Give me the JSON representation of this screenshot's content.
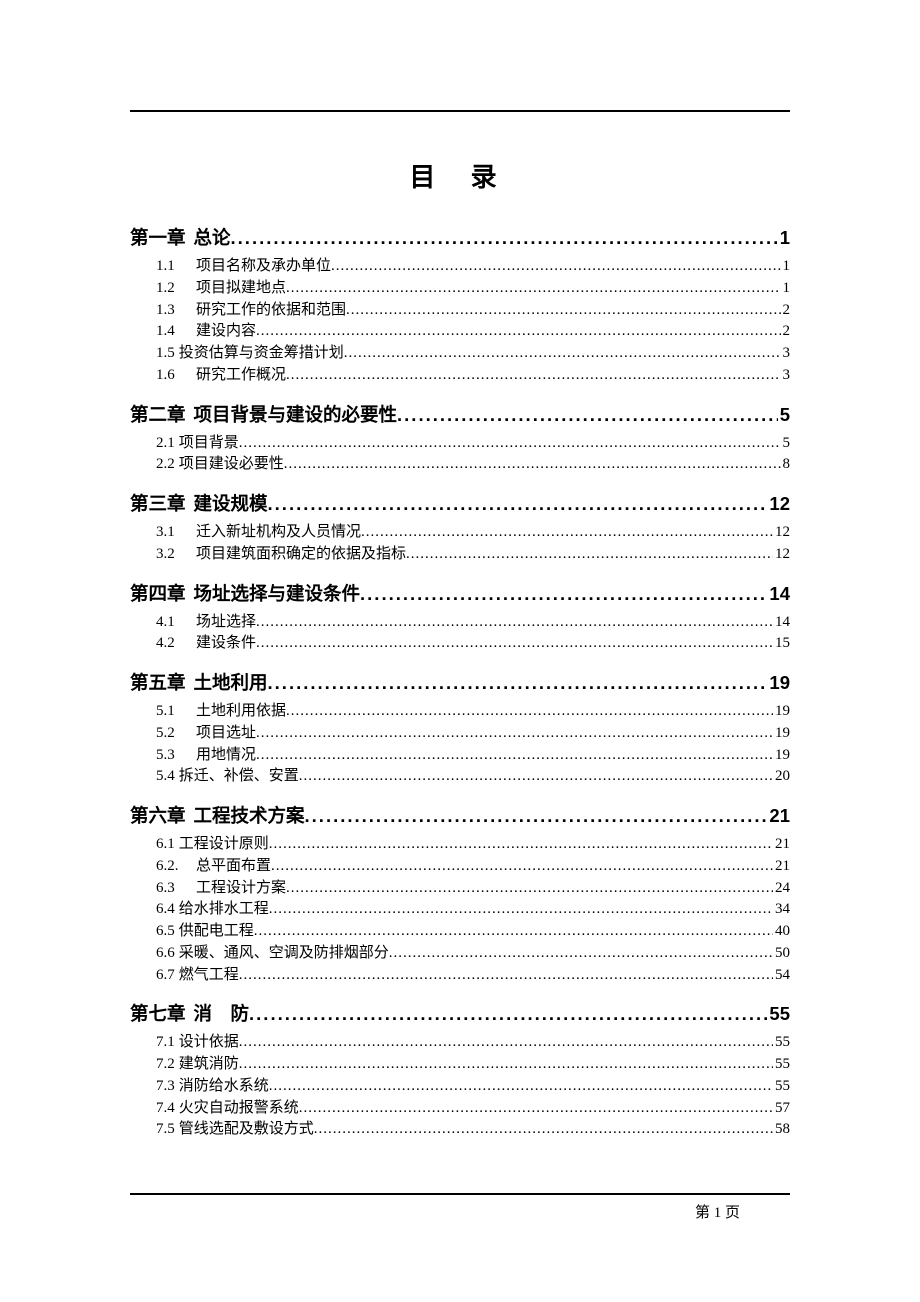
{
  "title": "目 录",
  "footer_page": "第 1 页",
  "toc": [
    {
      "type": "chapter",
      "num": "第一章",
      "label": "总论",
      "page": "1"
    },
    {
      "type": "sub",
      "num": "1.1",
      "label": "项目名称及承办单位",
      "page": "1"
    },
    {
      "type": "sub",
      "num": "1.2",
      "label": "项目拟建地点",
      "page": "1"
    },
    {
      "type": "sub",
      "num": "1.3",
      "label": "研究工作的依据和范围",
      "page": "2"
    },
    {
      "type": "sub",
      "num": "1.4",
      "label": "建设内容",
      "page": "2"
    },
    {
      "type": "sub",
      "num": "1.5",
      "label": "投资估算与资金筹措计划",
      "page": "3",
      "tight": true
    },
    {
      "type": "sub",
      "num": "1.6",
      "label": "研究工作概况",
      "page": "3"
    },
    {
      "type": "chapter",
      "num": "第二章",
      "label": "项目背景与建设的必要性",
      "page": "5"
    },
    {
      "type": "sub",
      "num": "2.1",
      "label": "项目背景",
      "page": "5",
      "tight": true
    },
    {
      "type": "sub",
      "num": "2.2",
      "label": "项目建设必要性",
      "page": "8",
      "tight": true
    },
    {
      "type": "chapter",
      "num": "第三章",
      "label": "建设规模",
      "page": "12"
    },
    {
      "type": "sub",
      "num": "3.1",
      "label": "迁入新址机构及人员情况",
      "page": "12"
    },
    {
      "type": "sub",
      "num": "3.2",
      "label": "项目建筑面积确定的依据及指标",
      "page": "12"
    },
    {
      "type": "chapter",
      "num": "第四章",
      "label": "场址选择与建设条件",
      "page": "14"
    },
    {
      "type": "sub",
      "num": "4.1",
      "label": "场址选择",
      "page": "14"
    },
    {
      "type": "sub",
      "num": "4.2",
      "label": "建设条件",
      "page": "15"
    },
    {
      "type": "chapter",
      "num": "第五章",
      "label": "土地利用",
      "page": "19"
    },
    {
      "type": "sub",
      "num": "5.1",
      "label": "土地利用依据",
      "page": "19"
    },
    {
      "type": "sub",
      "num": "5.2",
      "label": "项目选址",
      "page": "19"
    },
    {
      "type": "sub",
      "num": "5.3",
      "label": "用地情况",
      "page": "19"
    },
    {
      "type": "sub",
      "num": "5.4",
      "label": "拆迁、补偿、安置",
      "page": "20",
      "tight": true
    },
    {
      "type": "chapter",
      "num": "第六章",
      "label": "工程技术方案",
      "page": "21"
    },
    {
      "type": "sub",
      "num": "6.1",
      "label": "工程设计原则",
      "page": "21",
      "tight": true
    },
    {
      "type": "sub",
      "num": "6.2.",
      "label": "总平面布置",
      "page": "21"
    },
    {
      "type": "sub",
      "num": "6.3",
      "label": "工程设计方案",
      "page": "24"
    },
    {
      "type": "sub",
      "num": "6.4",
      "label": "给水排水工程",
      "page": "34",
      "tight": true
    },
    {
      "type": "sub",
      "num": "6.5",
      "label": "供配电工程",
      "page": "40",
      "tight": true
    },
    {
      "type": "sub",
      "num": "6.6",
      "label": "采暖、通风、空调及防排烟部分",
      "page": "50",
      "tight": true
    },
    {
      "type": "sub",
      "num": "6.7",
      "label": "燃气工程",
      "page": "54",
      "tight": true
    },
    {
      "type": "chapter",
      "num": "第七章",
      "label": "消　防",
      "page": "55"
    },
    {
      "type": "sub",
      "num": "7.1",
      "label": "设计依据",
      "page": "55",
      "tight": true
    },
    {
      "type": "sub",
      "num": "7.2",
      "label": "建筑消防",
      "page": "55",
      "tight": true
    },
    {
      "type": "sub",
      "num": "7.3",
      "label": "消防给水系统",
      "page": "55",
      "tight": true
    },
    {
      "type": "sub",
      "num": "7.4",
      "label": "火灾自动报警系统",
      "page": "57",
      "tight": true
    },
    {
      "type": "sub",
      "num": "7.5",
      "label": "管线选配及敷设方式",
      "page": "58",
      "tight": true
    }
  ]
}
